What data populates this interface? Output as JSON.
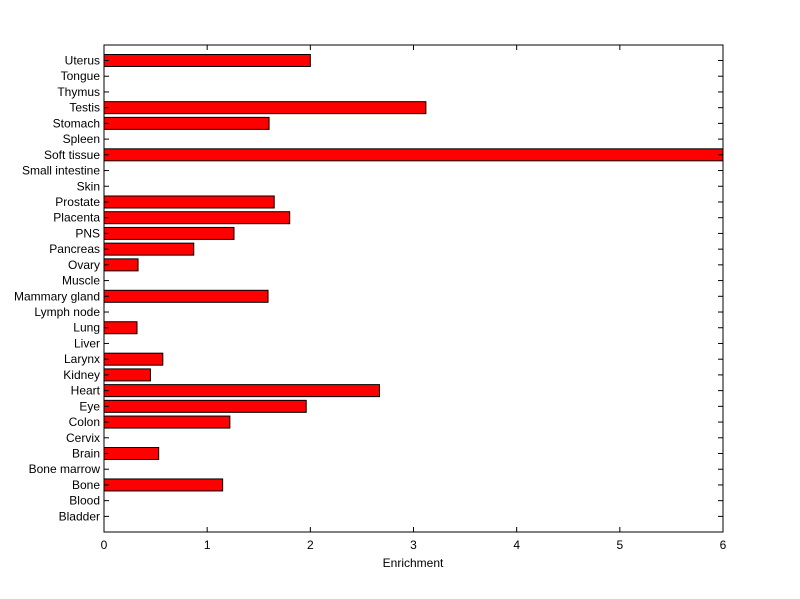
{
  "chart_data": {
    "type": "bar",
    "orientation": "horizontal",
    "categories": [
      "Uterus",
      "Tongue",
      "Thymus",
      "Testis",
      "Stomach",
      "Spleen",
      "Soft tissue",
      "Small intestine",
      "Skin",
      "Prostate",
      "Placenta",
      "PNS",
      "Pancreas",
      "Ovary",
      "Muscle",
      "Mammary gland",
      "Lymph node",
      "Lung",
      "Liver",
      "Larynx",
      "Kidney",
      "Heart",
      "Eye",
      "Colon",
      "Cervix",
      "Brain",
      "Bone marrow",
      "Bone",
      "Blood",
      "Bladder"
    ],
    "values": [
      2.0,
      0,
      0,
      3.12,
      1.6,
      0,
      6.0,
      0,
      0,
      1.65,
      1.8,
      1.26,
      0.87,
      0.33,
      0,
      1.59,
      0,
      0.32,
      0,
      0.57,
      0.45,
      2.67,
      1.96,
      1.22,
      0,
      0.53,
      0,
      1.15,
      0,
      0
    ],
    "title": "",
    "xlabel": "Enrichment",
    "ylabel": "",
    "xlim": [
      0,
      6
    ],
    "xticks": [
      "0",
      "1",
      "2",
      "3",
      "4",
      "5",
      "6"
    ],
    "grid": false,
    "legend": "none",
    "bar_color": "#ff0000",
    "bar_edge_color": "#000000"
  }
}
